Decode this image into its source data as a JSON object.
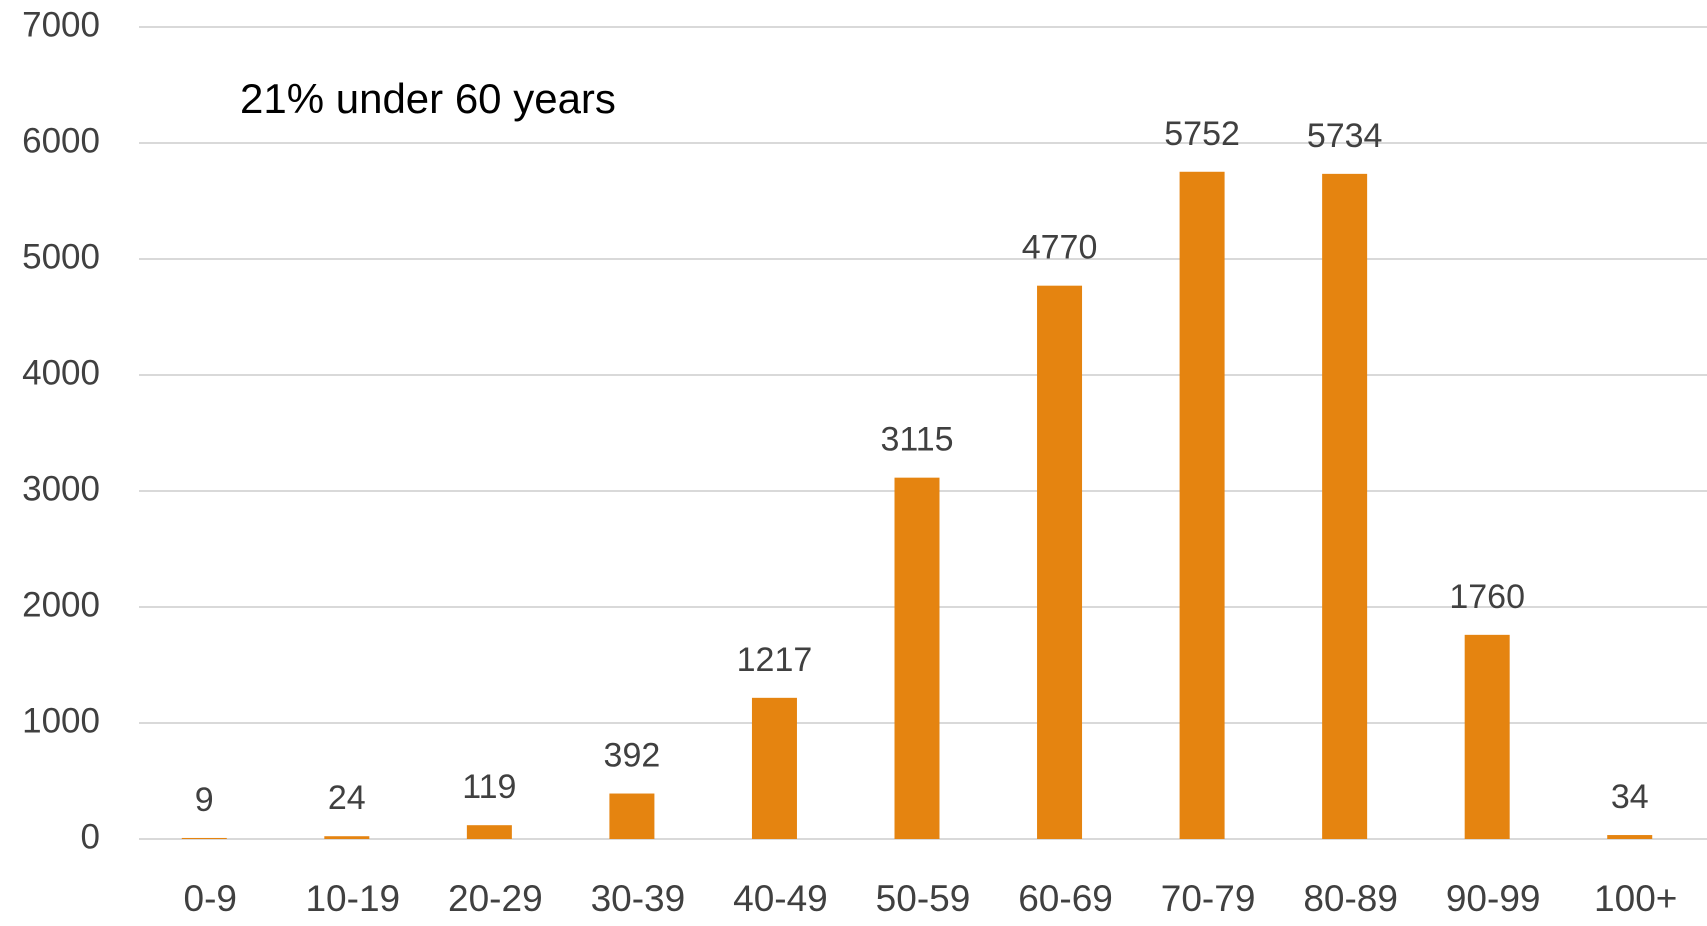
{
  "chart_data": {
    "type": "bar",
    "annotation": "21% under 60 years",
    "categories": [
      "0-9",
      "10-19",
      "20-29",
      "30-39",
      "40-49",
      "50-59",
      "60-69",
      "70-79",
      "80-89",
      "90-99",
      "100+"
    ],
    "values": [
      9,
      24,
      119,
      392,
      1217,
      3115,
      4770,
      5752,
      5734,
      1760,
      34
    ],
    "color": "#e58410",
    "ylim": [
      0,
      7000
    ],
    "yticks": [
      0,
      1000,
      2000,
      3000,
      4000,
      5000,
      6000,
      7000
    ],
    "grid": true
  }
}
